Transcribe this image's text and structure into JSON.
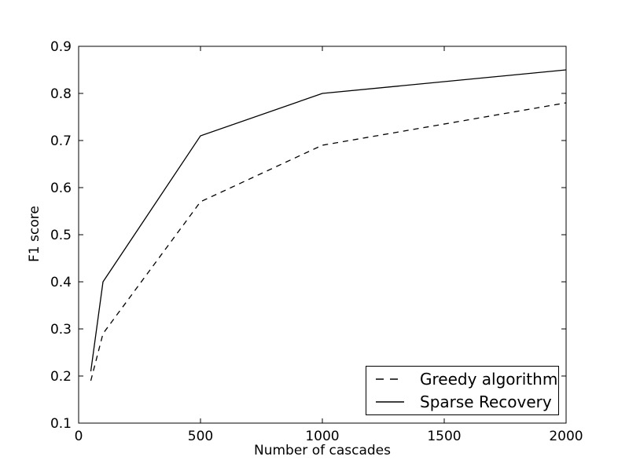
{
  "chart_data": {
    "type": "line",
    "title": "",
    "xlabel": "Number of cascades",
    "ylabel": "F1 score",
    "xlim": [
      0,
      2000
    ],
    "ylim": [
      0.1,
      0.9
    ],
    "xticks": [
      0,
      500,
      1000,
      1500,
      2000
    ],
    "yticks": [
      0.1,
      0.2,
      0.3,
      0.4,
      0.5,
      0.6,
      0.7,
      0.8,
      0.9
    ],
    "x": [
      50,
      100,
      500,
      1000,
      2000
    ],
    "series": [
      {
        "name": "Greedy algorithm",
        "style": "dashed",
        "color": "#000000",
        "values": [
          0.19,
          0.29,
          0.57,
          0.69,
          0.78
        ]
      },
      {
        "name": "Sparse Recovery",
        "style": "solid",
        "color": "#000000",
        "values": [
          0.21,
          0.4,
          0.71,
          0.8,
          0.85
        ]
      }
    ],
    "legend": {
      "position": "lower right",
      "entries": [
        "Greedy algorithm",
        "Sparse Recovery"
      ]
    },
    "grid": false,
    "background_color": "#ffffff",
    "axis_color": "#000000"
  }
}
